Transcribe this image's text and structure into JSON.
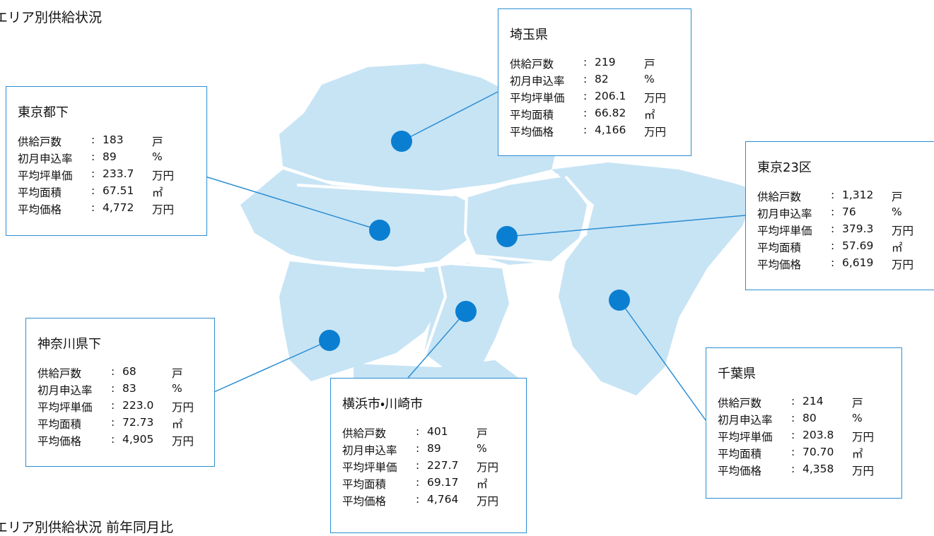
{
  "title": "エリア別供給状況",
  "subtitle": "エリア別供給状況 前年同月比",
  "separator": ":",
  "row_labels": [
    "供給戸数",
    "初月申込率",
    "平均坪単価",
    "平均面積",
    "平均価格"
  ],
  "units": [
    "戸",
    "%",
    "万円",
    "㎡",
    "万円"
  ],
  "areas": [
    {
      "name": "埼玉県",
      "values": [
        "219",
        "82",
        "206.1",
        "66.82",
        "4,166"
      ]
    },
    {
      "name": "東京都下",
      "values": [
        "183",
        "89",
        "233.7",
        "67.51",
        "4,772"
      ]
    },
    {
      "name": "東京23区",
      "values": [
        "1,312",
        "76",
        "379.3",
        "57.69",
        "6,619"
      ]
    },
    {
      "name": "千葉県",
      "values": [
        "214",
        "80",
        "203.8",
        "70.70",
        "4,358"
      ]
    },
    {
      "name": "神奈川県下",
      "values": [
        "68",
        "83",
        "223.0",
        "72.73",
        "4,905"
      ]
    },
    {
      "name": "横浜市・川崎市",
      "values": [
        "401",
        "89",
        "227.7",
        "69.17",
        "4,764"
      ]
    }
  ]
}
